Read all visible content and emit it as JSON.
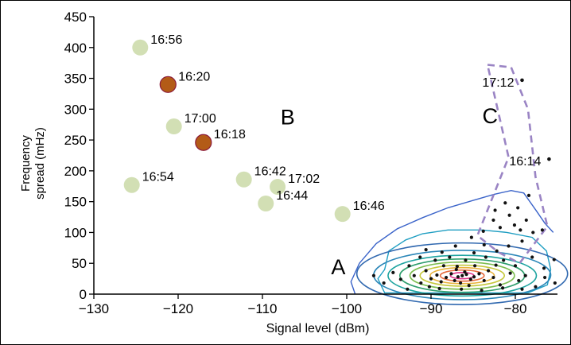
{
  "chart_data": {
    "type": "scatter",
    "title": "",
    "xlabel": "Signal level (dBm)",
    "ylabel_lines": [
      "Frequency",
      "spread (mHz)"
    ],
    "xlim": [
      -130,
      -75
    ],
    "ylim": [
      0,
      450
    ],
    "x_ticks": [
      -130,
      -120,
      -110,
      -100,
      -90,
      -80
    ],
    "y_ticks": [
      0,
      50,
      100,
      150,
      200,
      250,
      300,
      350,
      400,
      450
    ],
    "x_tick_labels": [
      "−130",
      "−120",
      "−110",
      "−100",
      "−90",
      "−80"
    ],
    "y_tick_labels": [
      "0",
      "50",
      "100",
      "150",
      "200",
      "250",
      "300",
      "350",
      "400",
      "450"
    ],
    "colors": {
      "light_green": "#d2dfb4",
      "brown": "#b35b17",
      "brown_outline": "#8b1a3a",
      "label_B": "#8aa53c",
      "label_C": "#9079b8",
      "dash_C": "#9a84c4"
    },
    "highlight_points": [
      {
        "time": "16:56",
        "x": -124.5,
        "y": 400,
        "color": "light_green"
      },
      {
        "time": "16:20",
        "x": -121.2,
        "y": 340,
        "color": "brown"
      },
      {
        "time": "17:00",
        "x": -120.5,
        "y": 272,
        "color": "light_green"
      },
      {
        "time": "16:18",
        "x": -117,
        "y": 246,
        "color": "brown"
      },
      {
        "time": "16:54",
        "x": -125.5,
        "y": 177,
        "color": "light_green"
      },
      {
        "time": "16:42",
        "x": -112.2,
        "y": 186,
        "color": "light_green"
      },
      {
        "time": "17:02",
        "x": -108.2,
        "y": 174,
        "color": "light_green"
      },
      {
        "time": "16:44",
        "x": -109.6,
        "y": 147,
        "color": "light_green"
      },
      {
        "time": "16:46",
        "x": -100.5,
        "y": 130,
        "color": "light_green"
      }
    ],
    "isolated_point_labels": [
      {
        "time": "17:12",
        "x": -79.2,
        "y": 347
      },
      {
        "time": "16:14",
        "x": -76,
        "y": 219
      }
    ],
    "region_labels": [
      {
        "text": "A",
        "x": -101,
        "y": 32,
        "color": "#000000"
      },
      {
        "text": "B",
        "x": -107,
        "y": 275,
        "color": "label_B"
      },
      {
        "text": "C",
        "x": -83,
        "y": 277,
        "color": "label_C"
      }
    ],
    "region_C_outline": [
      [
        -83.3,
        372
      ],
      [
        -80.5,
        368
      ],
      [
        -78.5,
        300
      ],
      [
        -77.6,
        190
      ],
      [
        -76.2,
        110
      ],
      [
        -79.5,
        50
      ],
      [
        -82,
        68
      ],
      [
        -84.5,
        95
      ],
      [
        -80.8,
        222
      ],
      [
        -83.3,
        372
      ]
    ],
    "contour_levels": [
      {
        "cx": -86.3,
        "cy": 30,
        "rx": 1.4,
        "ry": 5,
        "color": "#e0338a"
      },
      {
        "cx": -86.3,
        "cy": 30,
        "rx": 2.6,
        "ry": 9,
        "color": "#e66b3d"
      },
      {
        "cx": -86.3,
        "cy": 30,
        "rx": 3.8,
        "ry": 13,
        "color": "#e8b23a"
      },
      {
        "cx": -86.3,
        "cy": 30,
        "rx": 5,
        "ry": 17,
        "color": "#c6c83c"
      },
      {
        "cx": -86.3,
        "cy": 30,
        "rx": 6.2,
        "ry": 22,
        "color": "#7dbd4f"
      },
      {
        "cx": -86.3,
        "cy": 30,
        "rx": 7.4,
        "ry": 27,
        "color": "#2e9e6d"
      },
      {
        "cx": -86.3,
        "cy": 30,
        "rx": 8.8,
        "ry": 33,
        "color": "#1ea4a0"
      },
      {
        "cx": -86.3,
        "cy": 31,
        "rx": 10.5,
        "ry": 40,
        "color": "#2a86b8"
      },
      {
        "cx": -86.3,
        "cy": 33,
        "rx": 12.5,
        "ry": 50,
        "color": "#3169b0"
      }
    ],
    "outer_contours": [
      {
        "points": [
          [
            -95.5,
            40
          ],
          [
            -95,
            70
          ],
          [
            -93,
            88
          ],
          [
            -91,
            98
          ],
          [
            -88,
            104
          ],
          [
            -84,
            104
          ],
          [
            -81,
            100
          ],
          [
            -78,
            92
          ],
          [
            -76.3,
            70
          ],
          [
            -75.8,
            40
          ],
          [
            -76.2,
            15
          ],
          [
            -78.5,
            2
          ],
          [
            -95.5,
            2
          ],
          [
            -96.3,
            25
          ],
          [
            -95.5,
            40
          ]
        ],
        "color": "#1f9ec2"
      },
      {
        "points": [
          [
            -99,
            0
          ],
          [
            -99.5,
            20
          ],
          [
            -98.5,
            50
          ],
          [
            -96.5,
            82
          ],
          [
            -94,
            106
          ],
          [
            -91,
            124
          ],
          [
            -88,
            140
          ],
          [
            -85,
            152
          ],
          [
            -82.5,
            162
          ],
          [
            -80.5,
            168
          ],
          [
            -79,
            164
          ],
          [
            -77.5,
            135
          ],
          [
            -76.5,
            115
          ],
          [
            -75.5,
            100
          ]
        ],
        "color": "#3a63c9"
      }
    ],
    "dense_points": [
      [
        -86.3,
        30
      ],
      [
        -86.8,
        28
      ],
      [
        -85.8,
        32
      ],
      [
        -87.2,
        22
      ],
      [
        -85.3,
        24
      ],
      [
        -86,
        36
      ],
      [
        -87.6,
        33
      ],
      [
        -84.9,
        28
      ],
      [
        -86.5,
        18
      ],
      [
        -88.2,
        27
      ],
      [
        -84.3,
        33
      ],
      [
        -87,
        40
      ],
      [
        -85.5,
        14
      ],
      [
        -88.8,
        20
      ],
      [
        -83.7,
        22
      ],
      [
        -89.3,
        31
      ],
      [
        -83.2,
        38
      ],
      [
        -86.9,
        45
      ],
      [
        -84.8,
        46
      ],
      [
        -90,
        25
      ],
      [
        -82.6,
        27
      ],
      [
        -88.5,
        46
      ],
      [
        -82.3,
        47
      ],
      [
        -90.6,
        38
      ],
      [
        -81.8,
        15
      ],
      [
        -91.2,
        18
      ],
      [
        -85.9,
        55
      ],
      [
        -89.5,
        55
      ],
      [
        -81.4,
        55
      ],
      [
        -92,
        30
      ],
      [
        -80.6,
        34
      ],
      [
        -87.8,
        60
      ],
      [
        -83.5,
        60
      ],
      [
        -92.6,
        46
      ],
      [
        -80,
        46
      ],
      [
        -91.3,
        60
      ],
      [
        -79.6,
        22
      ],
      [
        -93.6,
        24
      ],
      [
        -84.9,
        67
      ],
      [
        -88.7,
        68
      ],
      [
        -82.2,
        70
      ],
      [
        -78.8,
        30
      ],
      [
        -94.5,
        35
      ],
      [
        -90.2,
        12
      ],
      [
        -81.5,
        10
      ],
      [
        -86.4,
        8
      ],
      [
        -89,
        9
      ],
      [
        -84,
        6
      ],
      [
        -92.8,
        8
      ],
      [
        -79.2,
        8
      ],
      [
        -95.6,
        18
      ],
      [
        -77.6,
        12
      ],
      [
        -96.8,
        30
      ],
      [
        -78,
        60
      ],
      [
        -76.6,
        42
      ],
      [
        -75.4,
        56
      ],
      [
        -75.3,
        18
      ],
      [
        -76.5,
        27
      ],
      [
        -80.8,
        78
      ],
      [
        -79.2,
        86
      ],
      [
        -83.7,
        80
      ],
      [
        -87.1,
        78
      ],
      [
        -90.6,
        72
      ],
      [
        -85.2,
        92
      ],
      [
        -81.8,
        108
      ],
      [
        -82.6,
        120
      ],
      [
        -80.7,
        128
      ],
      [
        -79.7,
        140
      ],
      [
        -78.4,
        160
      ],
      [
        -81.2,
        148
      ],
      [
        -82.4,
        136
      ],
      [
        -80.1,
        112
      ],
      [
        -78.7,
        120
      ],
      [
        -77.9,
        100
      ],
      [
        -76.8,
        104
      ],
      [
        -79.4,
        104
      ],
      [
        -83.8,
        102
      ]
    ],
    "isolated_dots": [
      [
        -79.2,
        347
      ],
      [
        -76,
        219
      ]
    ]
  }
}
